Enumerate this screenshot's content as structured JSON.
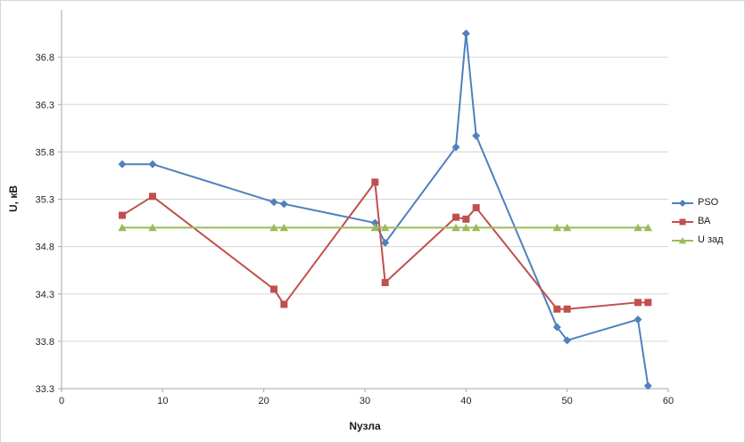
{
  "chart_data": {
    "type": "line",
    "x": [
      6,
      9,
      21,
      22,
      31,
      32,
      39,
      40,
      41,
      49,
      50,
      57,
      58
    ],
    "series": [
      {
        "name": "PSO",
        "color": "#4F81BD",
        "marker": "diamond",
        "values": [
          35.67,
          35.67,
          35.27,
          35.25,
          35.05,
          34.84,
          35.85,
          37.05,
          35.97,
          33.95,
          33.81,
          34.03,
          33.33
        ]
      },
      {
        "name": "ВА",
        "color": "#C0504D",
        "marker": "square",
        "values": [
          35.13,
          35.33,
          34.35,
          34.19,
          35.48,
          34.42,
          35.11,
          35.09,
          35.21,
          34.14,
          34.14,
          34.21,
          34.21
        ]
      },
      {
        "name": "U зад",
        "color": "#9BBB59",
        "marker": "triangle",
        "values": [
          35.0,
          35.0,
          35.0,
          35.0,
          35.0,
          35.0,
          35.0,
          35.0,
          35.0,
          35.0,
          35.0,
          35.0,
          35.0
        ]
      }
    ],
    "xlabel": "Nузла",
    "ylabel": "U, кВ",
    "xlim": [
      0,
      60
    ],
    "ylim": [
      33.3,
      37.3
    ],
    "xticks": [
      0,
      10,
      20,
      30,
      40,
      50,
      60
    ],
    "yticks": [
      33.3,
      33.8,
      34.3,
      34.8,
      35.3,
      35.8,
      36.3,
      36.8
    ],
    "grid": "horizontal",
    "legend_position": "right",
    "style": {
      "gridline_color": "#D5D5D5",
      "axis_color": "#A6A6A6",
      "tick_text_color": "#262626"
    }
  }
}
